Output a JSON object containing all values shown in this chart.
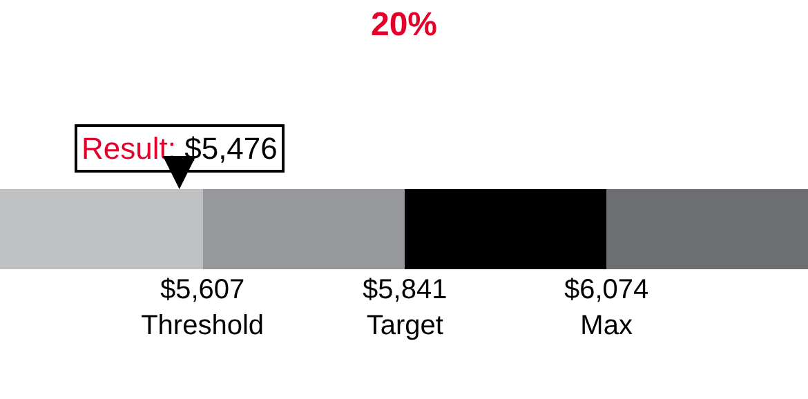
{
  "chart_data": {
    "type": "bar",
    "orientation": "horizontal",
    "title": "20%",
    "categories": [
      null
    ],
    "series": [
      {
        "color": "#bfc0c2",
        "base": [
          5373
        ],
        "values": [
          234
        ]
      },
      {
        "color": "#97989b",
        "base": [
          5607
        ],
        "values": [
          234
        ]
      },
      {
        "color": "#000000",
        "base": [
          5841
        ],
        "values": [
          233
        ]
      },
      {
        "color": "#6d6e71",
        "base": [
          6074
        ],
        "values": [
          233
        ]
      }
    ],
    "xlim": [
      5373,
      6307
    ],
    "xticks": [
      {
        "value": 5607,
        "label": "$5,607\nThreshold"
      },
      {
        "value": 5841,
        "label": "$5,841\nTarget"
      },
      {
        "value": 6074,
        "label": "$6,074\nMax"
      }
    ],
    "tick_labels": "x",
    "annotations": [
      "Result: $5,476"
    ]
  }
}
